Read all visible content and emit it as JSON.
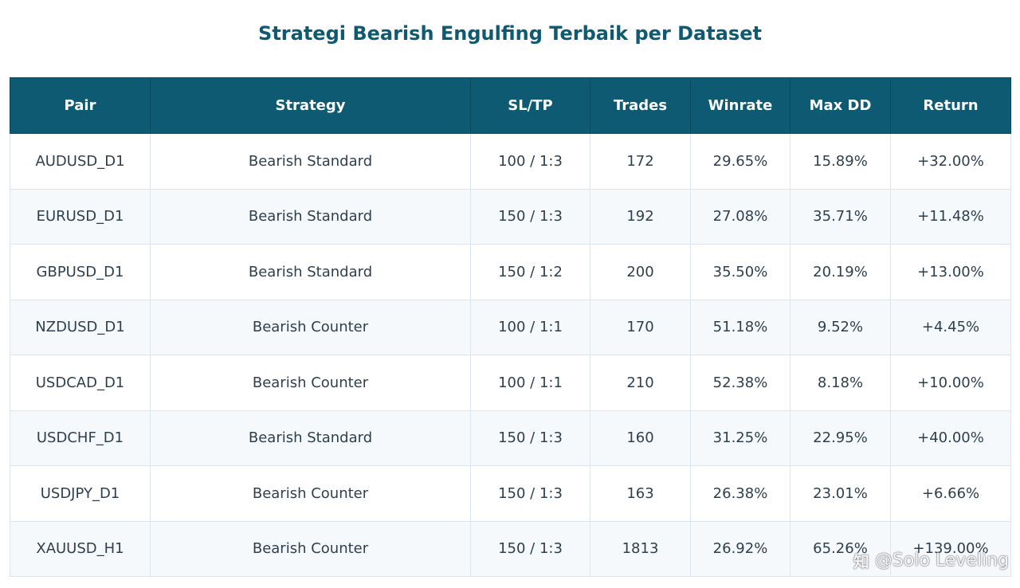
{
  "chart_data": {
    "type": "table",
    "title": "Strategi Bearish Engulfing Terbaik per Dataset",
    "columns": [
      "Pair",
      "Strategy",
      "SL/TP",
      "Trades",
      "Winrate",
      "Max DD",
      "Return"
    ],
    "rows": [
      [
        "AUDUSD_D1",
        "Bearish Standard",
        "100 / 1:3",
        "172",
        "29.65%",
        "15.89%",
        "+32.00%"
      ],
      [
        "EURUSD_D1",
        "Bearish Standard",
        "150 / 1:3",
        "192",
        "27.08%",
        "35.71%",
        "+11.48%"
      ],
      [
        "GBPUSD_D1",
        "Bearish Standard",
        "150 / 1:2",
        "200",
        "35.50%",
        "20.19%",
        "+13.00%"
      ],
      [
        "NZDUSD_D1",
        "Bearish Counter",
        "100 / 1:1",
        "170",
        "51.18%",
        "9.52%",
        "+4.45%"
      ],
      [
        "USDCAD_D1",
        "Bearish Counter",
        "100 / 1:1",
        "210",
        "52.38%",
        "8.18%",
        "+10.00%"
      ],
      [
        "USDCHF_D1",
        "Bearish Standard",
        "150 / 1:3",
        "160",
        "31.25%",
        "22.95%",
        "+40.00%"
      ],
      [
        "USDJPY_D1",
        "Bearish Counter",
        "150 / 1:3",
        "163",
        "26.38%",
        "23.01%",
        "+6.66%"
      ],
      [
        "XAUUSD_H1",
        "Bearish Counter",
        "150 / 1:3",
        "1813",
        "26.92%",
        "65.26%",
        "+139.00%"
      ]
    ]
  },
  "colors": {
    "header_bg": "#0e5a72",
    "title": "#0e5a72",
    "cell_text": "#2e3f4e",
    "row_alt": "#f5f9fc"
  },
  "watermark": {
    "logo": "知",
    "text": "@Solo Leveling"
  }
}
